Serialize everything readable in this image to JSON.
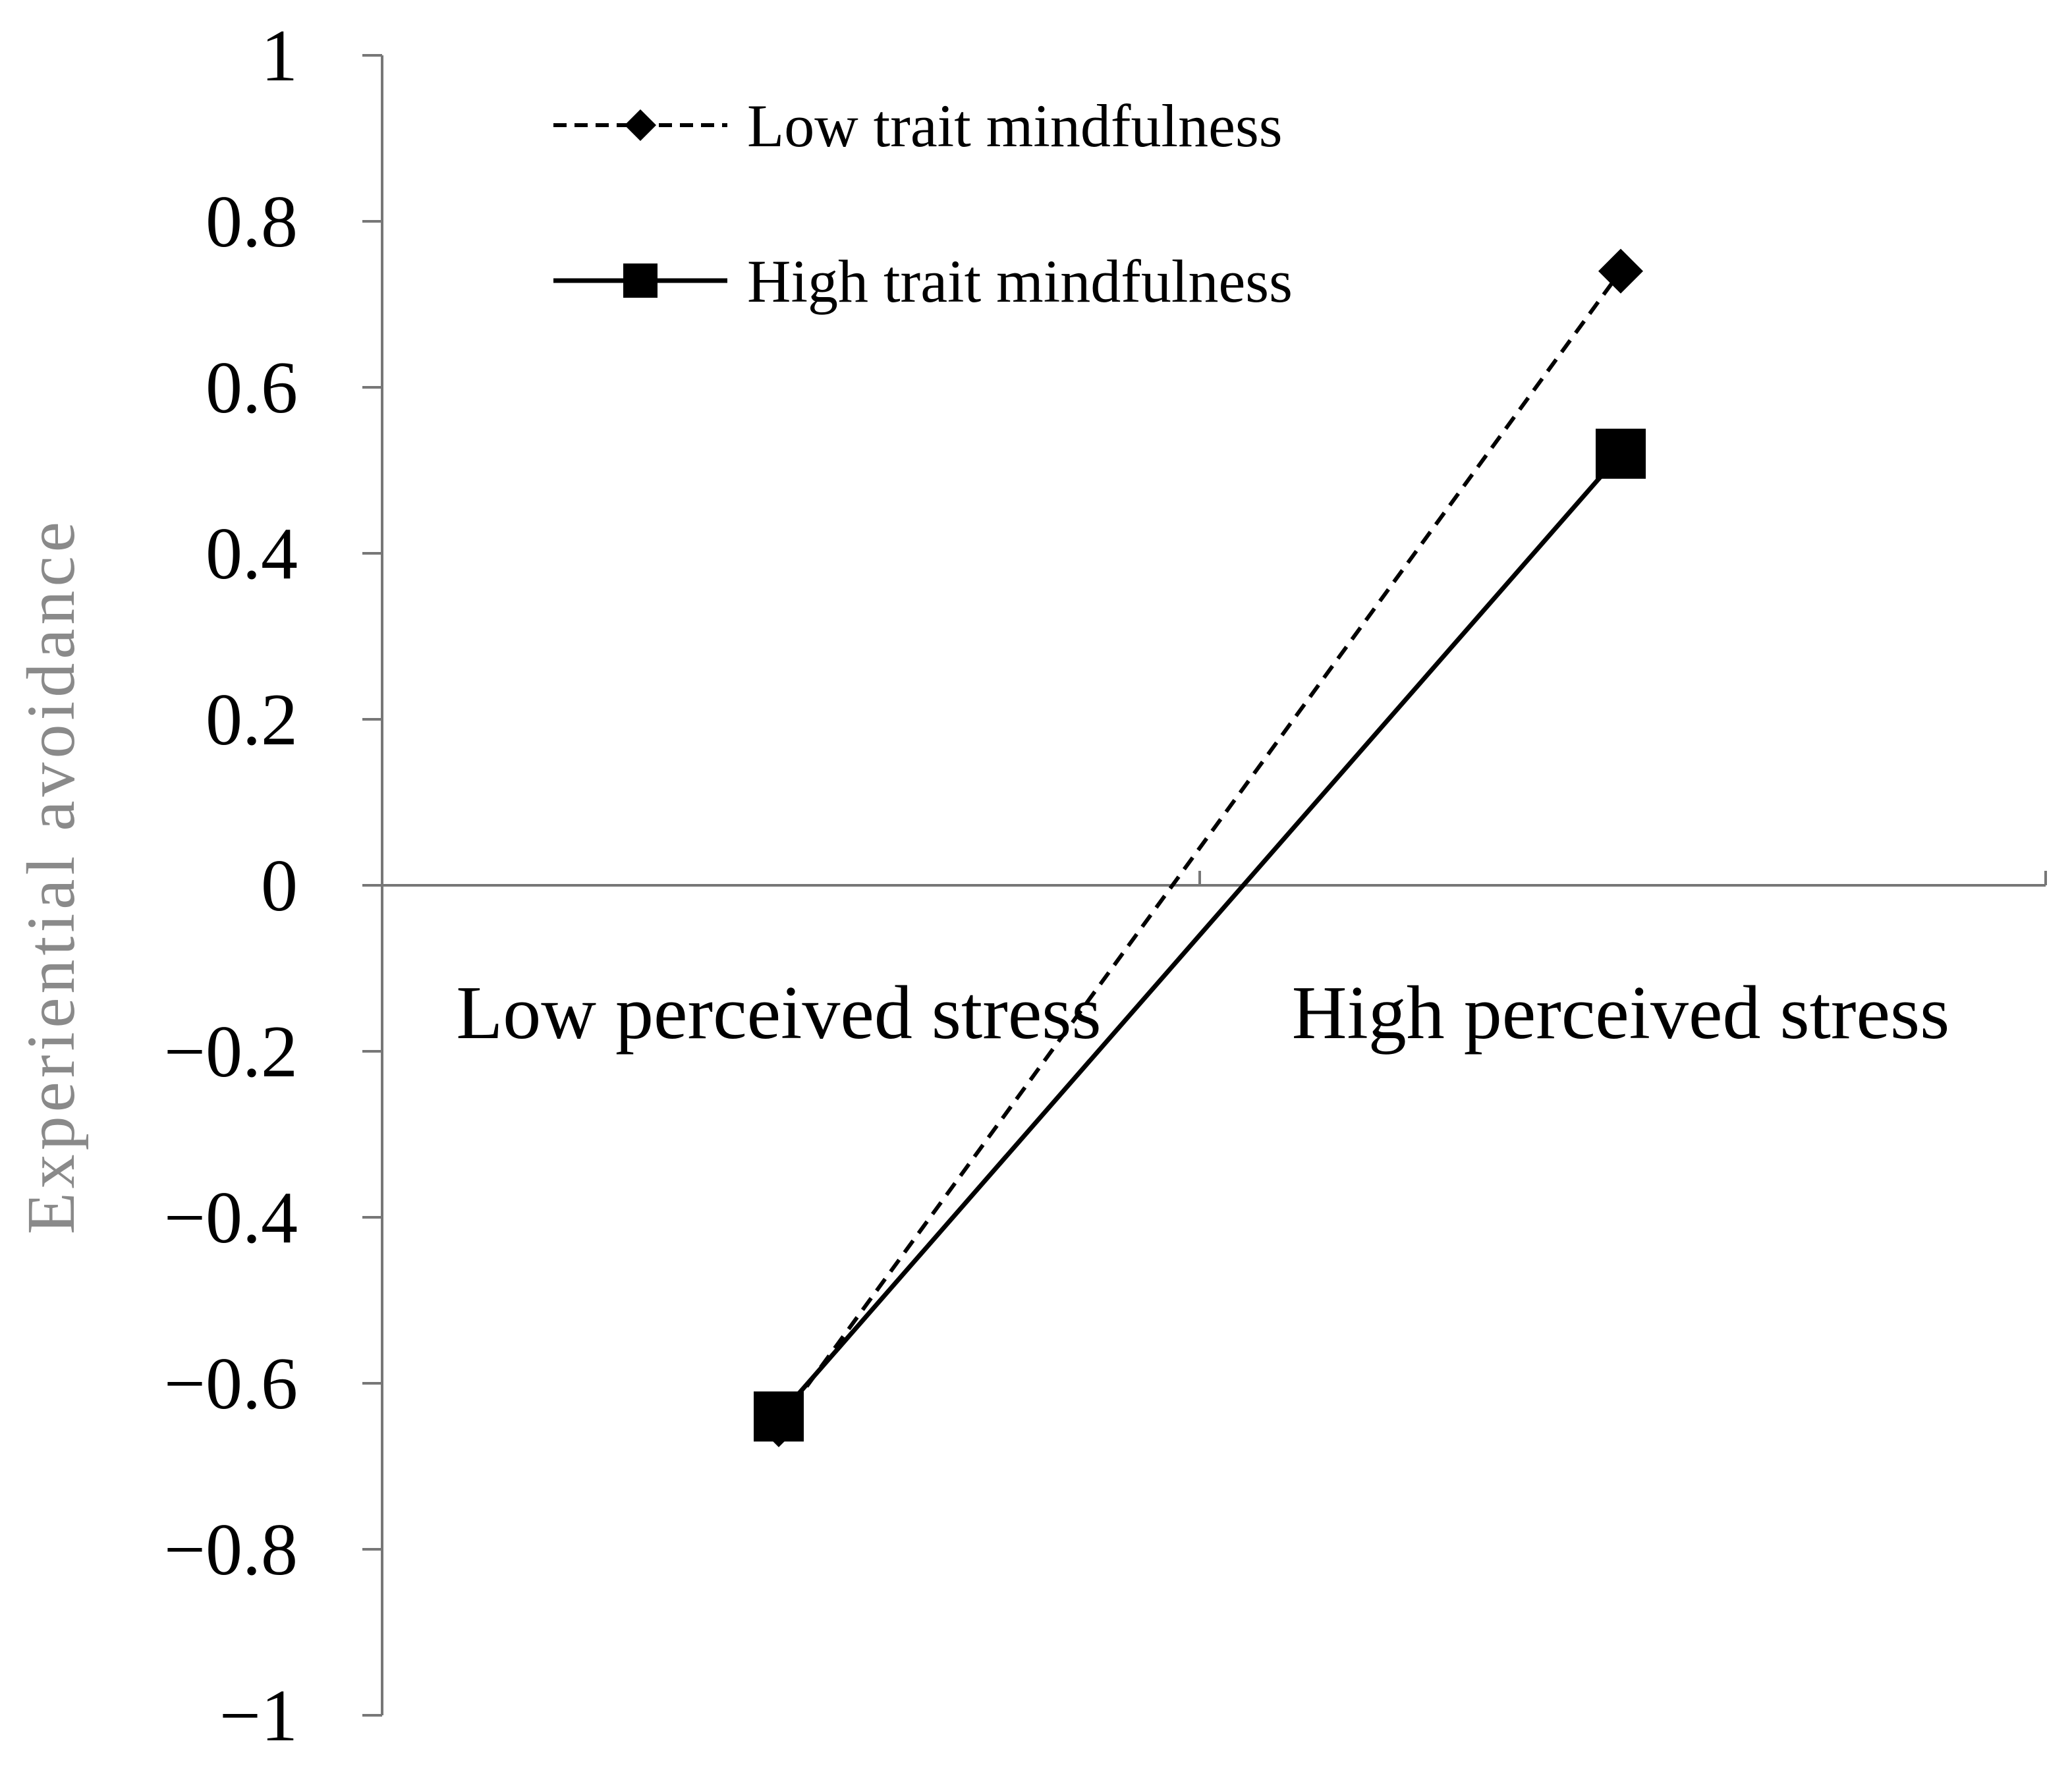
{
  "chart_data": {
    "type": "line",
    "title": "",
    "xlabel": "",
    "ylabel": "Experiential  avoidance",
    "categories": [
      "Low perceived stress",
      "High perceived stress"
    ],
    "ylim": [
      -1,
      1
    ],
    "yticks": [
      1,
      0.8,
      0.6,
      0.4,
      0.2,
      0,
      -0.2,
      -0.4,
      -0.6,
      -0.8,
      -1
    ],
    "ytick_labels": [
      "1",
      "0.8",
      "0.6",
      "0.4",
      "0.2",
      "0",
      "−0.2",
      "−0.4",
      "−0.6",
      "−0.8",
      "−1"
    ],
    "grid": false,
    "legend_position": "top-left",
    "series": [
      {
        "name": "Low trait mindfulness",
        "values": [
          -0.65,
          0.74
        ],
        "line_style": "dashed",
        "marker": "diamond",
        "color": "#000000"
      },
      {
        "name": "High trait mindfulness",
        "values": [
          -0.64,
          0.52
        ],
        "line_style": "solid",
        "marker": "square",
        "color": "#000000"
      }
    ]
  }
}
